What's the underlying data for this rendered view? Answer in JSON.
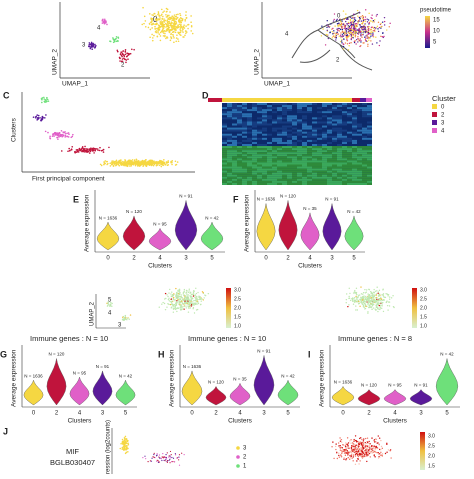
{
  "panel_a": {
    "cluster_labels": [
      "4",
      "0",
      "3",
      "2"
    ],
    "x_label": "UMAP_1",
    "y_label": "UMAP_2"
  },
  "panel_b": {
    "legend_title": "pseudotime",
    "legend_ticks": [
      "15",
      "10",
      "5"
    ],
    "branch_labels": [
      "4",
      "0",
      "2"
    ],
    "x_label": "UMAP_1",
    "y_label": "UMAP_2"
  },
  "panel_c": {
    "label": "C",
    "y_label": "Clusters",
    "x_label": "First principal component"
  },
  "panel_d": {
    "label": "D",
    "legend_title": "Cluster",
    "legend_items": [
      "0",
      "2",
      "3",
      "4"
    ]
  },
  "violin_panels": [
    {
      "label": "E",
      "y_label": "Average expression",
      "x_label": "Clusters",
      "categories": [
        "0",
        "2",
        "4",
        "3",
        "5"
      ],
      "n_labels": [
        "N = 1636",
        "N = 120",
        "N = 95",
        "N = 91",
        "N = 42"
      ]
    },
    {
      "label": "F",
      "y_label": "Average expression",
      "x_label": "Clusters",
      "categories": [
        "0",
        "2",
        "4",
        "3",
        "5"
      ],
      "n_labels": [
        "N = 1636",
        "N = 120",
        "N = 35",
        "N = 91",
        "N = 42"
      ]
    },
    {
      "label": "G",
      "title": "Immune genes : N = 10",
      "y_label": "Average expression",
      "x_label": "Clusters",
      "categories": [
        "0",
        "2",
        "4",
        "3",
        "5"
      ],
      "n_labels": [
        "N = 1636",
        "N = 120",
        "N = 95",
        "N = 91",
        "N = 42"
      ]
    },
    {
      "label": "H",
      "title": "Immune genes : N = 10",
      "y_label": "Average expression",
      "x_label": "Clusters",
      "categories": [
        "0",
        "2",
        "4",
        "3",
        "5"
      ],
      "n_labels": [
        "N = 1636",
        "N = 120",
        "N = 35",
        "N = 91",
        "N = 42"
      ]
    },
    {
      "label": "I",
      "title": "Immune genes : N = 8",
      "y_label": "Average expression",
      "x_label": "Clusters",
      "categories": [
        "0",
        "2",
        "4",
        "3",
        "5"
      ],
      "n_labels": [
        "N = 1636",
        "N = 120",
        "N = 95",
        "N = 91",
        "N = 42"
      ]
    }
  ],
  "umap_pair": {
    "cluster_labels": [
      "5",
      "4",
      "3"
    ],
    "y_label": "UMAP_2",
    "legend_ticks": [
      "3.0",
      "2.5",
      "2.0",
      "1.5",
      "1.0"
    ]
  },
  "panel_j": {
    "label": "J",
    "genes": [
      "MIF",
      "BGLB030407"
    ],
    "y_label": "ression (log2counts)",
    "legend_ticks": [
      "3",
      "2",
      "1"
    ],
    "legend2_ticks": [
      "3.0",
      "2.5",
      "2.0",
      "1.5"
    ]
  }
}
